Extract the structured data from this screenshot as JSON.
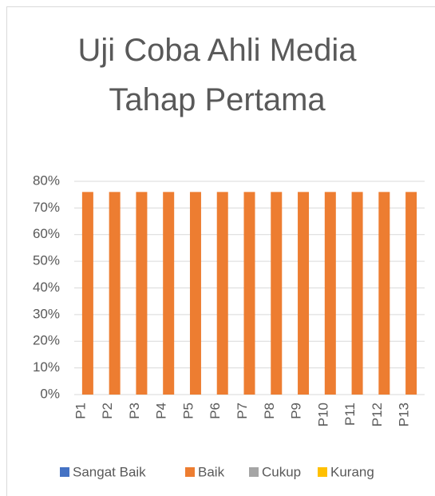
{
  "chart_data": {
    "type": "bar",
    "title": "Uji Coba Ahli Media Tahap Pertama",
    "categories": [
      "P1",
      "P2",
      "P3",
      "P4",
      "P5",
      "P6",
      "P7",
      "P8",
      "P9",
      "P10",
      "P11",
      "P12",
      "P13"
    ],
    "series": [
      {
        "name": "Sangat Baik",
        "color": "#4472c4",
        "values": [
          null,
          null,
          null,
          null,
          null,
          null,
          null,
          null,
          null,
          null,
          null,
          null,
          null
        ]
      },
      {
        "name": "Baik",
        "color": "#ed7d31",
        "values": [
          76,
          76,
          76,
          76,
          76,
          76,
          76,
          76,
          76,
          76,
          76,
          76,
          76
        ]
      },
      {
        "name": "Cukup",
        "color": "#a5a5a5",
        "values": [
          null,
          null,
          null,
          null,
          null,
          null,
          null,
          null,
          null,
          null,
          null,
          null,
          null
        ]
      },
      {
        "name": "Kurang",
        "color": "#ffc000",
        "values": [
          null,
          null,
          null,
          null,
          null,
          null,
          null,
          null,
          null,
          null,
          null,
          null,
          null
        ]
      }
    ],
    "ylim": [
      0,
      80
    ],
    "yticks": [
      {
        "value": 0,
        "label": "0%"
      },
      {
        "value": 10,
        "label": "10%"
      },
      {
        "value": 20,
        "label": "20%"
      },
      {
        "value": 30,
        "label": "30%"
      },
      {
        "value": 40,
        "label": "40%"
      },
      {
        "value": 50,
        "label": "50%"
      },
      {
        "value": 60,
        "label": "60%"
      },
      {
        "value": 70,
        "label": "70%"
      },
      {
        "value": 80,
        "label": "80%"
      }
    ],
    "grid": true,
    "legend": "bottom"
  }
}
